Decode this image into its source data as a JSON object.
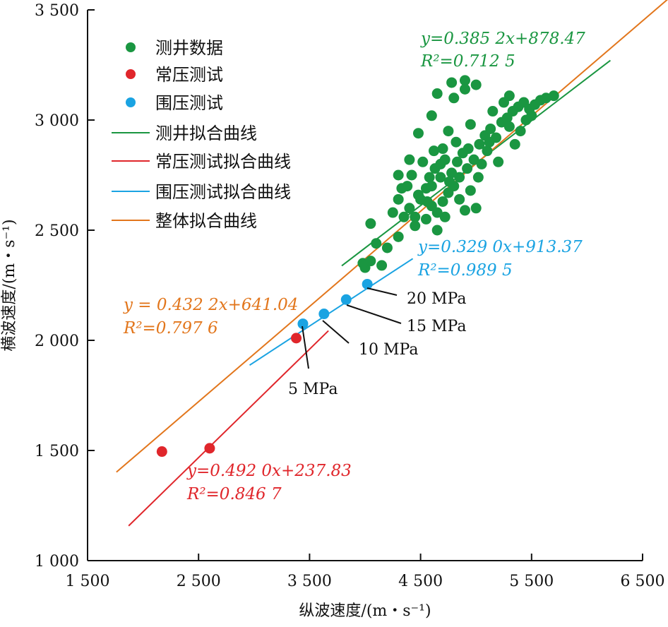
{
  "chart_data": {
    "type": "scatter",
    "xlabel": "纵波速度/(m・s⁻¹)",
    "ylabel": "横波速度/(m・s⁻¹)",
    "xlim": [
      1500,
      6500
    ],
    "ylim": [
      1000,
      3500
    ],
    "xticks": [
      "1 500",
      "2 500",
      "3 500",
      "4 500",
      "5 500",
      "6 500"
    ],
    "yticks": [
      "1 000",
      "1 500",
      "2 000",
      "2 500",
      "3 000",
      "3 500"
    ],
    "legend": [
      "测井数据",
      "常压测试",
      "围压测试",
      "测井拟合曲线",
      "常压测试拟合曲线",
      "围压测试拟合曲线",
      "整体拟合曲线"
    ],
    "legend_position": "top-left",
    "colors": {
      "logging": "#1a9641",
      "normal": "#e0262b",
      "confined": "#1aa3e2",
      "overall": "#e2761c"
    },
    "series": [
      {
        "name": "测井数据",
        "kind": "scatter",
        "color": "#1a9641",
        "points": [
          [
            4000,
            2330
          ],
          [
            4050,
            2360
          ],
          [
            4150,
            2340
          ],
          [
            3980,
            2350
          ],
          [
            4200,
            2420
          ],
          [
            4100,
            2440
          ],
          [
            4050,
            2530
          ],
          [
            4300,
            2470
          ],
          [
            4250,
            2580
          ],
          [
            4300,
            2640
          ],
          [
            4350,
            2560
          ],
          [
            4400,
            2600
          ],
          [
            4450,
            2520
          ],
          [
            4380,
            2700
          ],
          [
            4420,
            2750
          ],
          [
            4500,
            2640
          ],
          [
            4550,
            2690
          ],
          [
            4600,
            2610
          ],
          [
            4650,
            2580
          ],
          [
            4700,
            2630
          ],
          [
            4750,
            2670
          ],
          [
            4800,
            2700
          ],
          [
            4850,
            2640
          ],
          [
            4900,
            2590
          ],
          [
            4950,
            2680
          ],
          [
            4580,
            2740
          ],
          [
            4630,
            2780
          ],
          [
            4680,
            2800
          ],
          [
            4720,
            2820
          ],
          [
            4780,
            2760
          ],
          [
            4830,
            2810
          ],
          [
            4880,
            2850
          ],
          [
            4930,
            2870
          ],
          [
            4980,
            2820
          ],
          [
            5030,
            2890
          ],
          [
            5080,
            2930
          ],
          [
            5130,
            2960
          ],
          [
            5180,
            2920
          ],
          [
            5230,
            2990
          ],
          [
            5280,
            3010
          ],
          [
            5330,
            3040
          ],
          [
            5380,
            3060
          ],
          [
            5430,
            3080
          ],
          [
            5480,
            3050
          ],
          [
            5530,
            3070
          ],
          [
            5580,
            3090
          ],
          [
            5630,
            3100
          ],
          [
            5700,
            3110
          ],
          [
            5150,
            3040
          ],
          [
            5250,
            3080
          ],
          [
            5300,
            3110
          ],
          [
            4800,
            3100
          ],
          [
            4900,
            3140
          ],
          [
            5000,
            3160
          ],
          [
            4900,
            3180
          ],
          [
            4780,
            3170
          ],
          [
            4650,
            3120
          ],
          [
            4600,
            3020
          ],
          [
            4480,
            2940
          ],
          [
            4750,
            2950
          ],
          [
            5100,
            2860
          ],
          [
            5200,
            2810
          ],
          [
            4820,
            2900
          ],
          [
            4950,
            2980
          ],
          [
            4700,
            2870
          ],
          [
            4520,
            2810
          ],
          [
            4400,
            2820
          ],
          [
            4330,
            2690
          ],
          [
            4300,
            2750
          ],
          [
            4600,
            2700
          ],
          [
            4850,
            2740
          ],
          [
            5050,
            2800
          ],
          [
            4450,
            2560
          ],
          [
            4550,
            2550
          ],
          [
            4650,
            2500
          ],
          [
            5000,
            2600
          ],
          [
            5300,
            2970
          ],
          [
            5400,
            2950
          ],
          [
            5450,
            3000
          ],
          [
            5350,
            2890
          ],
          [
            5500,
            3020
          ],
          [
            4620,
            2860
          ],
          [
            4680,
            2740
          ],
          [
            4760,
            2720
          ],
          [
            4920,
            2780
          ],
          [
            5020,
            2740
          ],
          [
            5120,
            2900
          ],
          [
            4480,
            2660
          ],
          [
            4560,
            2630
          ],
          [
            4720,
            2560
          ]
        ]
      },
      {
        "name": "常压测试",
        "kind": "scatter",
        "color": "#e0262b",
        "points": [
          [
            2170,
            1495
          ],
          [
            2600,
            1510
          ],
          [
            3380,
            2010
          ]
        ]
      },
      {
        "name": "围压测试",
        "kind": "scatter",
        "color": "#1aa3e2",
        "labels": [
          "5 MPa",
          "10 MPa",
          "15 MPa",
          "20 MPa"
        ],
        "points": [
          [
            3440,
            2075
          ],
          [
            3630,
            2120
          ],
          [
            3830,
            2185
          ],
          [
            4020,
            2255
          ]
        ]
      },
      {
        "name": "测井拟合曲线",
        "kind": "line",
        "color": "#1a9641",
        "equation": "y=0.385 2x+878.47",
        "r2": "R²=0.712 5",
        "slope": 0.3852,
        "intercept": 878.47,
        "x_range": [
          3790,
          6210
        ]
      },
      {
        "name": "常压测试拟合曲线",
        "kind": "line",
        "color": "#e0262b",
        "equation": "y=0.492 0x+237.83",
        "r2": "R²=0.846 7",
        "slope": 0.492,
        "intercept": 237.83,
        "x_range": [
          1870,
          3670
        ]
      },
      {
        "name": "围压测试拟合曲线",
        "kind": "line",
        "color": "#1aa3e2",
        "equation": "y=0.329 0x+913.37",
        "r2": "R²=0.989 5",
        "slope": 0.329,
        "intercept": 913.37,
        "x_range": [
          2960,
          4430
        ]
      },
      {
        "name": "整体拟合曲线",
        "kind": "line",
        "color": "#e2761c",
        "equation": "y = 0.432 2x+641.04",
        "r2": "R²=0.797 6",
        "slope": 0.4322,
        "intercept": 641.04,
        "x_range": [
          1760,
          6750
        ]
      }
    ]
  }
}
